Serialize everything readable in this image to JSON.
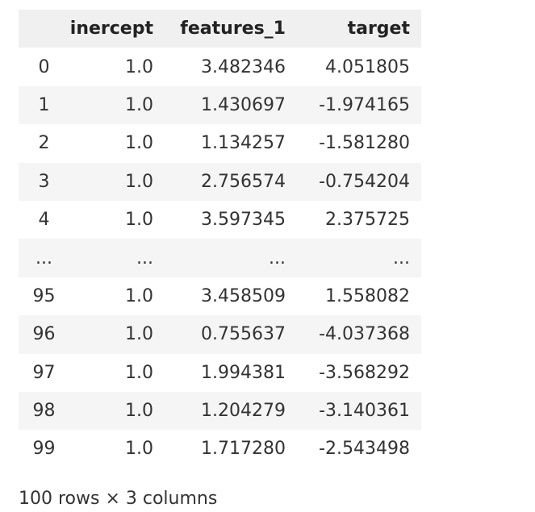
{
  "table": {
    "columns": [
      "inercept",
      "features_1",
      "target"
    ],
    "rows": [
      {
        "index": "0",
        "inercept": "1.0",
        "features_1": "3.482346",
        "target": "4.051805"
      },
      {
        "index": "1",
        "inercept": "1.0",
        "features_1": "1.430697",
        "target": "-1.974165"
      },
      {
        "index": "2",
        "inercept": "1.0",
        "features_1": "1.134257",
        "target": "-1.581280"
      },
      {
        "index": "3",
        "inercept": "1.0",
        "features_1": "2.756574",
        "target": "-0.754204"
      },
      {
        "index": "4",
        "inercept": "1.0",
        "features_1": "3.597345",
        "target": "2.375725"
      },
      {
        "index": "...",
        "inercept": "...",
        "features_1": "...",
        "target": "..."
      },
      {
        "index": "95",
        "inercept": "1.0",
        "features_1": "3.458509",
        "target": "1.558082"
      },
      {
        "index": "96",
        "inercept": "1.0",
        "features_1": "0.755637",
        "target": "-4.037368"
      },
      {
        "index": "97",
        "inercept": "1.0",
        "features_1": "1.994381",
        "target": "-3.568292"
      },
      {
        "index": "98",
        "inercept": "1.0",
        "features_1": "1.204279",
        "target": "-3.140361"
      },
      {
        "index": "99",
        "inercept": "1.0",
        "features_1": "1.717280",
        "target": "-2.543498"
      }
    ]
  },
  "footer": {
    "shape_text": "100 rows × 3 columns"
  },
  "colors": {
    "header_bg": "#f0f0f0",
    "stripe_bg": "#f5f5f5",
    "text": "#333333"
  }
}
